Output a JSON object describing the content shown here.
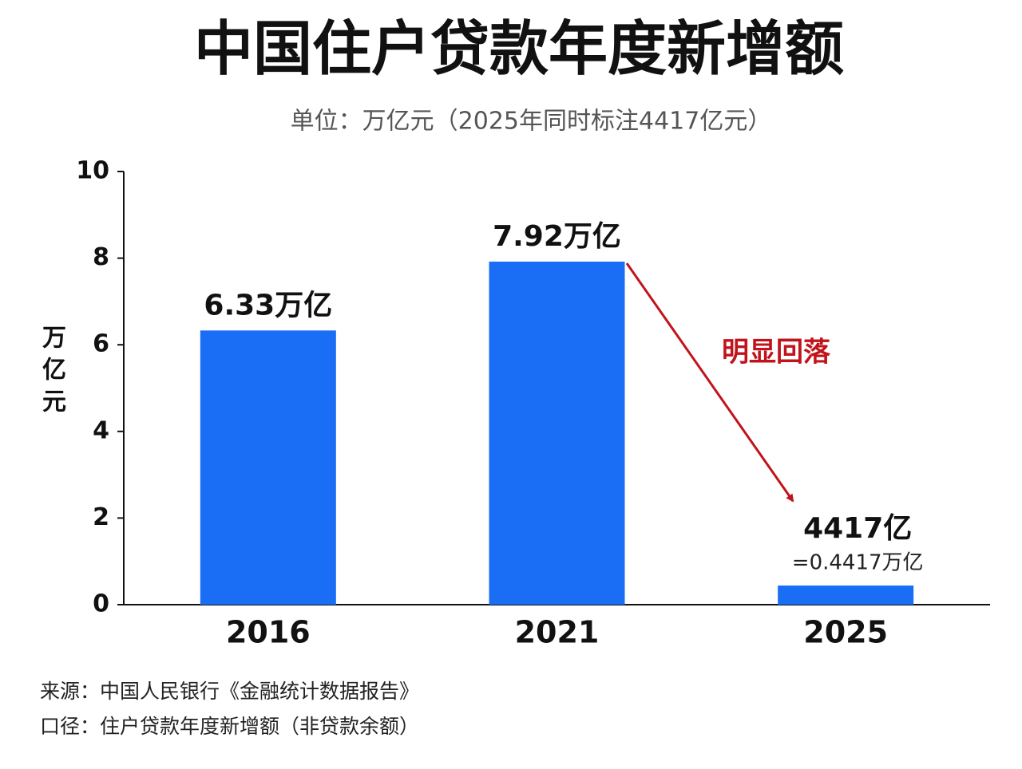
{
  "chart_data": {
    "type": "bar",
    "title": "中国住户贷款年度新增额",
    "subtitle": "单位：万亿元（2025年同时标注4417亿元）",
    "y_label": "万亿元",
    "categories": [
      "2016",
      "2021",
      "2025"
    ],
    "values": [
      6.33,
      7.92,
      0.4417
    ],
    "value_labels": [
      "6.33万亿",
      "7.92万亿",
      "4417亿"
    ],
    "color": "#1a6ef5",
    "ylim": [
      0,
      10
    ],
    "yticks": [
      0,
      2,
      4,
      6,
      8,
      10
    ],
    "annotations": [
      "=0.4417万亿",
      "明显回落"
    ],
    "footnotes": [
      "来源：中国人民银行《金融统计数据报告》",
      "口径：住户贷款年度新增额（非贷款余额）"
    ]
  }
}
